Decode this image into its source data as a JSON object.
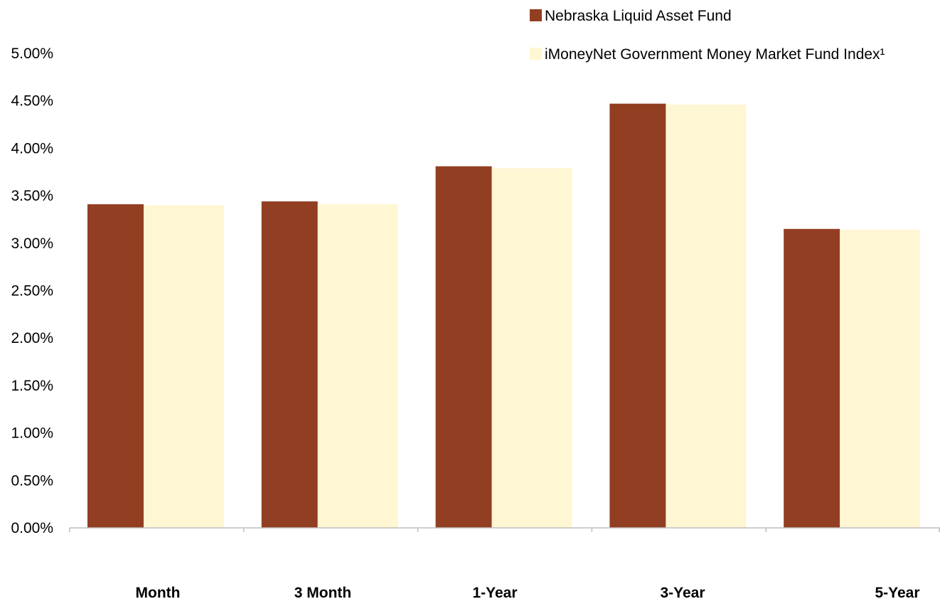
{
  "chart_data": {
    "type": "bar",
    "title": "",
    "xlabel": "",
    "ylabel": "",
    "categories": [
      "Month",
      "3 Month",
      "1-Year",
      "3-Year",
      "5-Year"
    ],
    "series": [
      {
        "name": "Nebraska Liquid Asset Fund",
        "color": "#923E22",
        "values": [
          3.41,
          3.44,
          3.81,
          4.47,
          3.15
        ]
      },
      {
        "name": "iMoneyNet Government Money Market Fund Index¹",
        "color": "#FFF6D3",
        "values": [
          3.4,
          3.41,
          3.79,
          4.46,
          3.14
        ]
      }
    ],
    "ylim": [
      0,
      5
    ],
    "yticks": [
      "0.00%",
      "0.50%",
      "1.00%",
      "1.50%",
      "2.00%",
      "2.50%",
      "3.00%",
      "3.50%",
      "4.00%",
      "4.50%",
      "5.00%"
    ],
    "grid": false,
    "legend_position": "top-right"
  }
}
